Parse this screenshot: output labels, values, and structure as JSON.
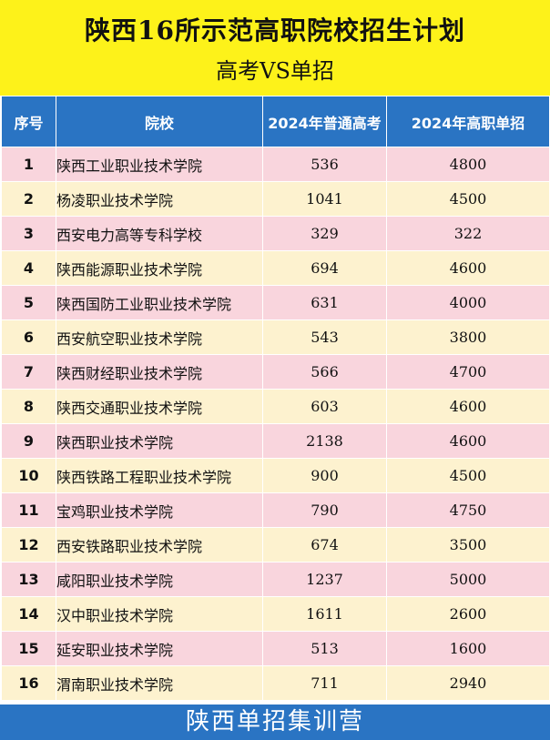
{
  "header": {
    "title": "陕西16所示范高职院校招生计划",
    "subtitle": "高考VS单招",
    "background": "#fdf21a"
  },
  "table": {
    "columns": [
      "序号",
      "院校",
      "2024年普通高考",
      "2024年高职单招"
    ],
    "header_color": "#2a74c3",
    "row_colors": [
      "#f9d5dd",
      "#fdf2cf"
    ],
    "rows": [
      {
        "seq": "1",
        "name": "陕西工业职业技术学院",
        "gaokao": "536",
        "danzhao": "4800"
      },
      {
        "seq": "2",
        "name": "杨凌职业技术学院",
        "gaokao": "1041",
        "danzhao": "4500"
      },
      {
        "seq": "3",
        "name": "西安电力高等专科学校",
        "gaokao": "329",
        "danzhao": "322"
      },
      {
        "seq": "4",
        "name": "陕西能源职业技术学院",
        "gaokao": "694",
        "danzhao": "4600"
      },
      {
        "seq": "5",
        "name": "陕西国防工业职业技术学院",
        "gaokao": "631",
        "danzhao": "4000"
      },
      {
        "seq": "6",
        "name": "西安航空职业技术学院",
        "gaokao": "543",
        "danzhao": "3800"
      },
      {
        "seq": "7",
        "name": "陕西财经职业技术学院",
        "gaokao": "566",
        "danzhao": "4700"
      },
      {
        "seq": "8",
        "name": "陕西交通职业技术学院",
        "gaokao": "603",
        "danzhao": "4600"
      },
      {
        "seq": "9",
        "name": "陕西职业技术学院",
        "gaokao": "2138",
        "danzhao": "4600"
      },
      {
        "seq": "10",
        "name": "陕西铁路工程职业技术学院",
        "gaokao": "900",
        "danzhao": "4500"
      },
      {
        "seq": "11",
        "name": "宝鸡职业技术学院",
        "gaokao": "790",
        "danzhao": "4750"
      },
      {
        "seq": "12",
        "name": "西安铁路职业技术学院",
        "gaokao": "674",
        "danzhao": "3500"
      },
      {
        "seq": "13",
        "name": "咸阳职业技术学院",
        "gaokao": "1237",
        "danzhao": "5000"
      },
      {
        "seq": "14",
        "name": "汉中职业技术学院",
        "gaokao": "1611",
        "danzhao": "2600"
      },
      {
        "seq": "15",
        "name": "延安职业技术学院",
        "gaokao": "513",
        "danzhao": "1600"
      },
      {
        "seq": "16",
        "name": "渭南职业技术学院",
        "gaokao": "711",
        "danzhao": "2940"
      }
    ]
  },
  "footer": {
    "text": "陕西单招集训营",
    "background": "#2a74c3"
  }
}
